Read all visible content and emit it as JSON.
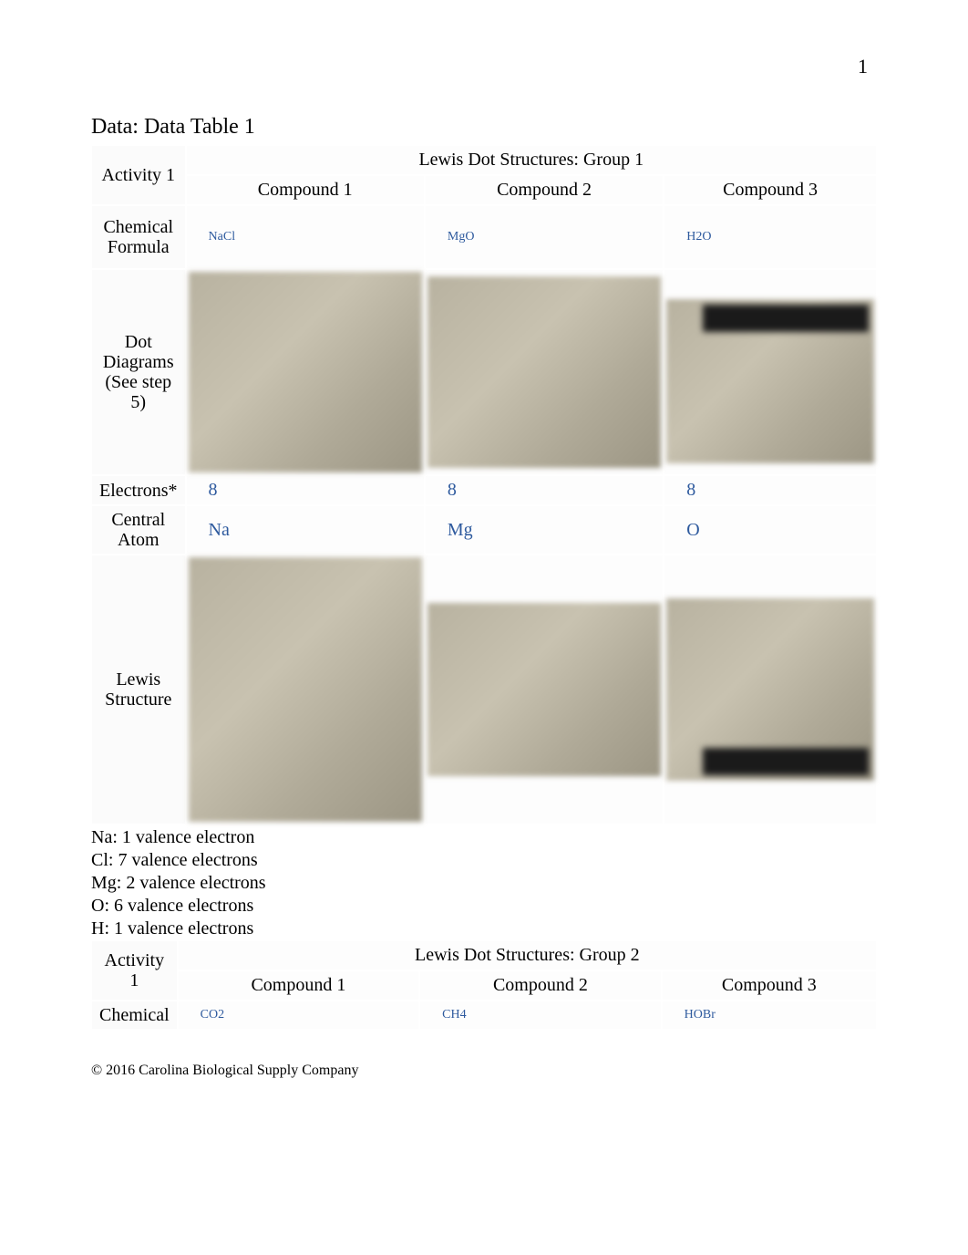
{
  "page_number": "1",
  "section_title": "Data: Data Table 1",
  "footer": "© 2016 Carolina Biological Supply Company",
  "colors": {
    "text": "#000000",
    "blue": "#2e5a9e",
    "background": "#ffffff",
    "cell_bg": "#fdfdfd",
    "img_tone": "#b8b2a0"
  },
  "table1": {
    "activity_label": "Activity 1",
    "group_header": "Lewis Dot Structures: Group 1",
    "compound_headers": [
      "Compound 1",
      "Compound 2",
      "Compound 3"
    ],
    "rows": {
      "chemical_formula": {
        "label": "Chemical Formula",
        "values": [
          "NaCl",
          "MgO",
          "H2O"
        ]
      },
      "dot_diagrams": {
        "label": "Dot Diagrams (See step 5)"
      },
      "electrons": {
        "label": "Electrons*",
        "values": [
          "8",
          "8",
          "8"
        ]
      },
      "central_atom": {
        "label": "Central Atom",
        "values": [
          "Na",
          "Mg",
          "O"
        ]
      },
      "lewis_structure": {
        "label": "Lewis Structure"
      }
    }
  },
  "valence_notes": [
    "Na: 1 valence electron",
    "Cl: 7 valence electrons",
    "Mg: 2 valence electrons",
    "O: 6 valence electrons",
    "H: 1 valence electrons"
  ],
  "table2": {
    "activity_label": "Activity 1",
    "group_header": "Lewis Dot Structures: Group 2",
    "compound_headers": [
      "Compound 1",
      "Compound 2",
      "Compound 3"
    ],
    "rows": {
      "chemical_formula": {
        "label": "Chemical",
        "values": [
          "CO2",
          "CH4",
          "HOBr"
        ]
      }
    }
  }
}
